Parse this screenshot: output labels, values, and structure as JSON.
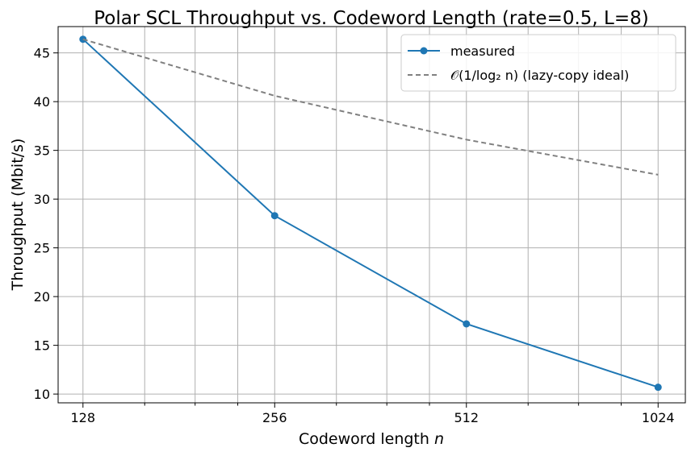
{
  "chart_data": {
    "type": "line",
    "title": "Polar SCL Throughput vs. Codeword Length (rate=0.5, L=8)",
    "xlabel": "Codeword length n",
    "ylabel": "Throughput (Mbit/s)",
    "x_scale": "log2",
    "x": [
      128,
      256,
      512,
      1024
    ],
    "xticks": [
      "128",
      "256",
      "512",
      "1024"
    ],
    "xlim": [
      117,
      1130
    ],
    "ylim": [
      9.1,
      47.7
    ],
    "yticks": [
      10,
      15,
      20,
      25,
      30,
      35,
      40,
      45
    ],
    "grid": true,
    "legend_position": "top-right",
    "series": [
      {
        "name": "measured",
        "values": [
          46.4,
          28.3,
          17.2,
          10.7
        ],
        "color": "#1f77b4",
        "style": "solid",
        "marker": "circle"
      },
      {
        "name": "𝒪(1/log₂ n) (lazy-copy ideal)",
        "values": [
          46.4,
          40.6,
          36.1,
          32.5
        ],
        "color": "#808080",
        "style": "dashed",
        "marker": "none"
      }
    ]
  }
}
